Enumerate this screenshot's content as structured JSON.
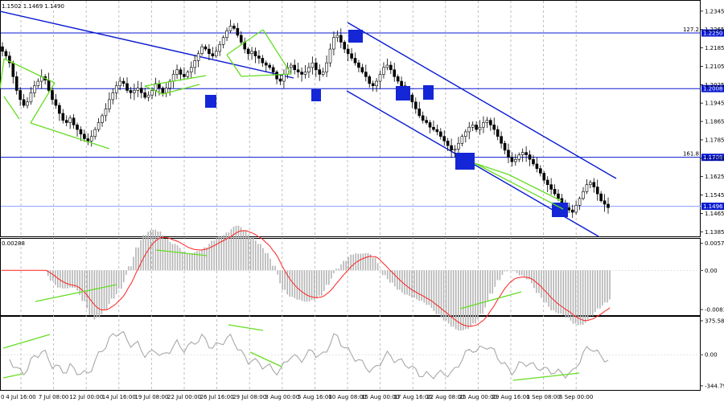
{
  "chart_data": [
    {
      "type": "candlestick",
      "header": "1.1502 1.1469 1.1490",
      "price_ticks": [
        "1.2345",
        "1.2265",
        "1.2185",
        "1.2105",
        "1.2025",
        "1.1945",
        "1.1865",
        "1.1785",
        "1.1705",
        "1.1625",
        "1.1545",
        "1.1465",
        "1.1385"
      ],
      "ylim": [
        1.1365,
        1.239
      ],
      "levels": [
        {
          "value": 1.225,
          "label": "127.2",
          "tag": "1.2250"
        },
        {
          "value": 1.2008,
          "label": "",
          "tag": "1.2008"
        },
        {
          "value": 1.1709,
          "label": "161.8",
          "tag": "1.1709"
        }
      ],
      "current_price": {
        "value": 1.1496,
        "tag": "1.1496"
      },
      "hidden_tick": "1.1465",
      "x_ticks": [
        "4 Jul 16:00",
        "7 Jul 08:00",
        "12 Jul 00:00",
        "14 Jul 16:00",
        "19 Jul 08:00",
        "22 Jul 00:00",
        "26 Jul 16:00",
        "29 Jul 08:00",
        "3 Aug 00:00",
        "5 Aug 16:00",
        "10 Aug 08:00",
        "15 Aug 00:00",
        "17 Aug 16:00",
        "22 Aug 08:00",
        "25 Aug 00:00",
        "29 Aug 16:00",
        "1 Sep 08:00",
        "6 Sep 00:00"
      ],
      "x_start_label": "0",
      "closes": [
        1.217,
        1.215,
        1.212,
        1.206,
        1.2,
        1.196,
        1.1935,
        1.195,
        1.199,
        1.202,
        1.204,
        1.206,
        1.2045,
        1.2,
        1.196,
        1.1935,
        1.19,
        1.187,
        1.186,
        1.188,
        1.185,
        1.183,
        1.181,
        1.179,
        1.178,
        1.18,
        1.183,
        1.186,
        1.189,
        1.192,
        1.196,
        1.199,
        1.202,
        1.204,
        1.203,
        1.2,
        1.199,
        1.2,
        1.201,
        1.199,
        1.197,
        1.198,
        1.2,
        1.203,
        1.201,
        1.199,
        1.201,
        1.204,
        1.207,
        1.209,
        1.207,
        1.206,
        1.208,
        1.21,
        1.213,
        1.216,
        1.219,
        1.218,
        1.216,
        1.215,
        1.217,
        1.22,
        1.223,
        1.226,
        1.228,
        1.227,
        1.224,
        1.221,
        1.218,
        1.216,
        1.217,
        1.215,
        1.214,
        1.212,
        1.211,
        1.21,
        1.208,
        1.205,
        1.204,
        1.207,
        1.21,
        1.211,
        1.209,
        1.208,
        1.207,
        1.208,
        1.21,
        1.212,
        1.209,
        1.207,
        1.208,
        1.212,
        1.218,
        1.223,
        1.224,
        1.221,
        1.218,
        1.216,
        1.214,
        1.212,
        1.21,
        1.208,
        1.206,
        1.203,
        1.202,
        1.204,
        1.207,
        1.21,
        1.211,
        1.209,
        1.206,
        1.204,
        1.202,
        1.2,
        1.198,
        1.195,
        1.192,
        1.189,
        1.187,
        1.186,
        1.184,
        1.183,
        1.182,
        1.18,
        1.178,
        1.176,
        1.174,
        1.1745,
        1.177,
        1.18,
        1.182,
        1.184,
        1.185,
        1.183,
        1.184,
        1.186,
        1.187,
        1.185,
        1.183,
        1.18,
        1.177,
        1.174,
        1.171,
        1.169,
        1.17,
        1.172,
        1.173,
        1.172,
        1.17,
        1.168,
        1.166,
        1.164,
        1.161,
        1.159,
        1.157,
        1.155,
        1.153,
        1.151,
        1.149,
        1.148,
        1.147,
        1.15,
        1.153,
        1.156,
        1.159,
        1.16,
        1.158,
        1.155,
        1.152,
        1.1505,
        1.149
      ],
      "osc1": {
        "ticks": [
          "0.00572",
          "0.00",
          "-0.00831"
        ],
        "header": "0.00288",
        "ylim": [
          -0.0095,
          0.0067
        ]
      },
      "osc2": {
        "ticks": [
          "375.5808",
          "0.00",
          "-344.798"
        ],
        "ylim": [
          -390,
          420
        ]
      },
      "colors": {
        "candle": "#000000",
        "line": "#0a1ad0",
        "diverg": "#66dd22",
        "hist": "#b4b4b4",
        "signal": "#ff2020",
        "cci": "#a8a8a8"
      }
    }
  ]
}
